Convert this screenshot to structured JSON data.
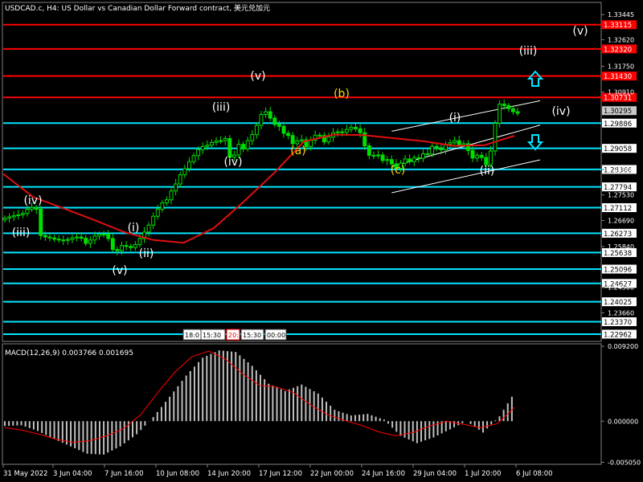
{
  "header": {
    "title": "USDCAD.c, H4:  US Dollar vs Canadian Dollar Forward contract, 美元兑加元"
  },
  "macd_header": {
    "label": "MACD(12,26,9) 0.003766 0.001695"
  },
  "time_badge": [
    "18:0",
    "15:30",
    "20:",
    "15:30",
    "00:00"
  ],
  "colors": {
    "background": "#000000",
    "candles": "#00e000",
    "ma": "#e01010",
    "cyan_level": "#00e5ff",
    "red_level": "#ff0000",
    "wave_white": "#ffffff",
    "wave_yellow": "#ffd700",
    "histogram": "#c0c0c0",
    "signal": "#ff0000",
    "grid": "#808080"
  },
  "chart_data": {
    "type": "candlestick",
    "symbol": "USDCAD.c",
    "timeframe": "H4",
    "x_ticks": [
      "31 May 2022",
      "3 Jun 04:00",
      "7 Jun 16:00",
      "10 Jun 08:00",
      "14 Jun 20:00",
      "17 Jun 12:00",
      "22 Jun 00:00",
      "24 Jun 16:00",
      "29 Jun 04:00",
      "1 Jul 20:00",
      "6 Jul 08:00"
    ],
    "y_ticks": [
      1.33445,
      1.3262,
      1.3175,
      1.3091,
      1.2836,
      1.2753,
      1.2669,
      1.2584,
      1.245,
      1.2366
    ],
    "y_range": [
      1.2275,
      1.3382
    ],
    "price_series": [
      1.2677,
      1.2681,
      1.2685,
      1.2688,
      1.2692,
      1.2706,
      1.2712,
      1.2706,
      1.262,
      1.2615,
      1.2612,
      1.2608,
      1.2605,
      1.2604,
      1.2607,
      1.2612,
      1.2615,
      1.2611,
      1.2594,
      1.2605,
      1.2618,
      1.2624,
      1.2624,
      1.261,
      1.2574,
      1.257,
      1.2587,
      1.2584,
      1.258,
      1.259,
      1.261,
      1.2631,
      1.2654,
      1.2683,
      1.2706,
      1.2727,
      1.2737,
      1.2766,
      1.2789,
      1.2819,
      1.2839,
      1.2862,
      1.2882,
      1.2901,
      1.2912,
      1.2916,
      1.2925,
      1.293,
      1.2931,
      1.2938,
      1.2877,
      1.2884,
      1.2919,
      1.2904,
      1.2931,
      1.2951,
      1.2981,
      1.3017,
      1.3026,
      1.3005,
      1.2984,
      1.2978,
      1.2955,
      1.2948,
      1.2921,
      1.293,
      1.2934,
      1.2912,
      1.2932,
      1.2949,
      1.2948,
      1.2927,
      1.2943,
      1.2957,
      1.296,
      1.2958,
      1.2968,
      1.2975,
      1.297,
      1.2957,
      1.2914,
      1.2883,
      1.2882,
      1.2884,
      1.2866,
      1.2869,
      1.2855,
      1.284,
      1.2857,
      1.2871,
      1.2862,
      1.2875,
      1.2873,
      1.2888,
      1.2887,
      1.2912,
      1.2905,
      1.2901,
      1.2919,
      1.2924,
      1.2931,
      1.2917,
      1.2921,
      1.2899,
      1.2874,
      1.2883,
      1.2876,
      1.2852,
      1.2897,
      1.2988,
      1.3051,
      1.3046,
      1.3036,
      1.3026,
      1.3021
    ],
    "moving_average": [
      1.2822,
      1.2746,
      1.2709,
      1.2672,
      1.2632,
      1.2605,
      1.2596,
      1.2644,
      1.2731,
      1.2824,
      1.2928,
      1.2951,
      1.2949,
      1.2939,
      1.2929,
      1.2914,
      1.2916,
      1.2947
    ],
    "levels": [
      {
        "value": 1.33115,
        "style": "red"
      },
      {
        "value": 1.3232,
        "style": "red"
      },
      {
        "value": 1.3143,
        "style": "red"
      },
      {
        "value": 1.30731,
        "style": "red"
      },
      {
        "value": 1.30295,
        "style": "current"
      },
      {
        "value": 1.29886,
        "style": "cyan"
      },
      {
        "value": 1.29058,
        "style": "cyan"
      },
      {
        "value": 1.28366,
        "style": "cyan"
      },
      {
        "value": 1.27794,
        "style": "cyan"
      },
      {
        "value": 1.27112,
        "style": "cyan"
      },
      {
        "value": 1.26273,
        "style": "cyan"
      },
      {
        "value": 1.25638,
        "style": "cyan"
      },
      {
        "value": 1.25096,
        "style": "cyan"
      },
      {
        "value": 1.24627,
        "style": "cyan"
      },
      {
        "value": 1.24025,
        "style": "cyan"
      },
      {
        "value": 1.2337,
        "style": "cyan"
      },
      {
        "value": 1.22962,
        "style": "cyan"
      }
    ],
    "wave_labels": [
      {
        "text": "(iv)",
        "color": "white"
      },
      {
        "text": "(iii)",
        "color": "white"
      },
      {
        "text": "(v)",
        "color": "white"
      },
      {
        "text": "(i)",
        "color": "white"
      },
      {
        "text": "(ii)",
        "color": "white"
      },
      {
        "text": "(iii)",
        "color": "white"
      },
      {
        "text": "(iv)",
        "color": "white"
      },
      {
        "text": "(v)",
        "color": "white"
      },
      {
        "text": "(a)",
        "color": "yellow"
      },
      {
        "text": "(b)",
        "color": "yellow"
      },
      {
        "text": "(c)",
        "color": "yellow"
      },
      {
        "text": "(i)",
        "color": "white"
      },
      {
        "text": "(ii)",
        "color": "white"
      },
      {
        "text": "(iii)",
        "color": "white"
      },
      {
        "text": "(iv)",
        "color": "white"
      },
      {
        "text": "(v)",
        "color": "white"
      }
    ],
    "macd": {
      "name": "MACD(12,26,9)",
      "macd_value": 0.003766,
      "signal_value": 0.001695,
      "y_ticks": [
        0.0092,
        0.0,
        -0.00505
      ],
      "y_range": [
        -0.0052,
        0.0094
      ],
      "histogram": [
        -0.0006,
        -0.0005,
        -0.0012,
        -0.0022,
        -0.0031,
        -0.004,
        -0.0041,
        -0.0031,
        -0.0016,
        0.0005,
        0.003,
        0.0056,
        0.0078,
        0.0087,
        0.0085,
        0.0068,
        0.0046,
        0.0037,
        0.0045,
        0.0034,
        0.0014,
        0.0007,
        0.0009,
        0.0002,
        -0.0018,
        -0.0027,
        -0.002,
        -0.001,
        0.0,
        -0.0014,
        0.0006,
        0.0038
      ],
      "signal": [
        -0.0008,
        -0.0011,
        -0.0016,
        -0.0022,
        -0.0026,
        -0.0024,
        -0.0018,
        -0.0009,
        0.0008,
        0.0035,
        0.006,
        0.0079,
        0.0086,
        0.0076,
        0.0058,
        0.0044,
        0.0042,
        0.0035,
        0.002,
        0.0008,
        0.0001,
        -0.0005,
        -0.0013,
        -0.0018,
        -0.0014,
        -0.0006,
        0.0,
        -0.0004,
        -0.0008,
        -0.0003,
        0.0017
      ]
    }
  }
}
